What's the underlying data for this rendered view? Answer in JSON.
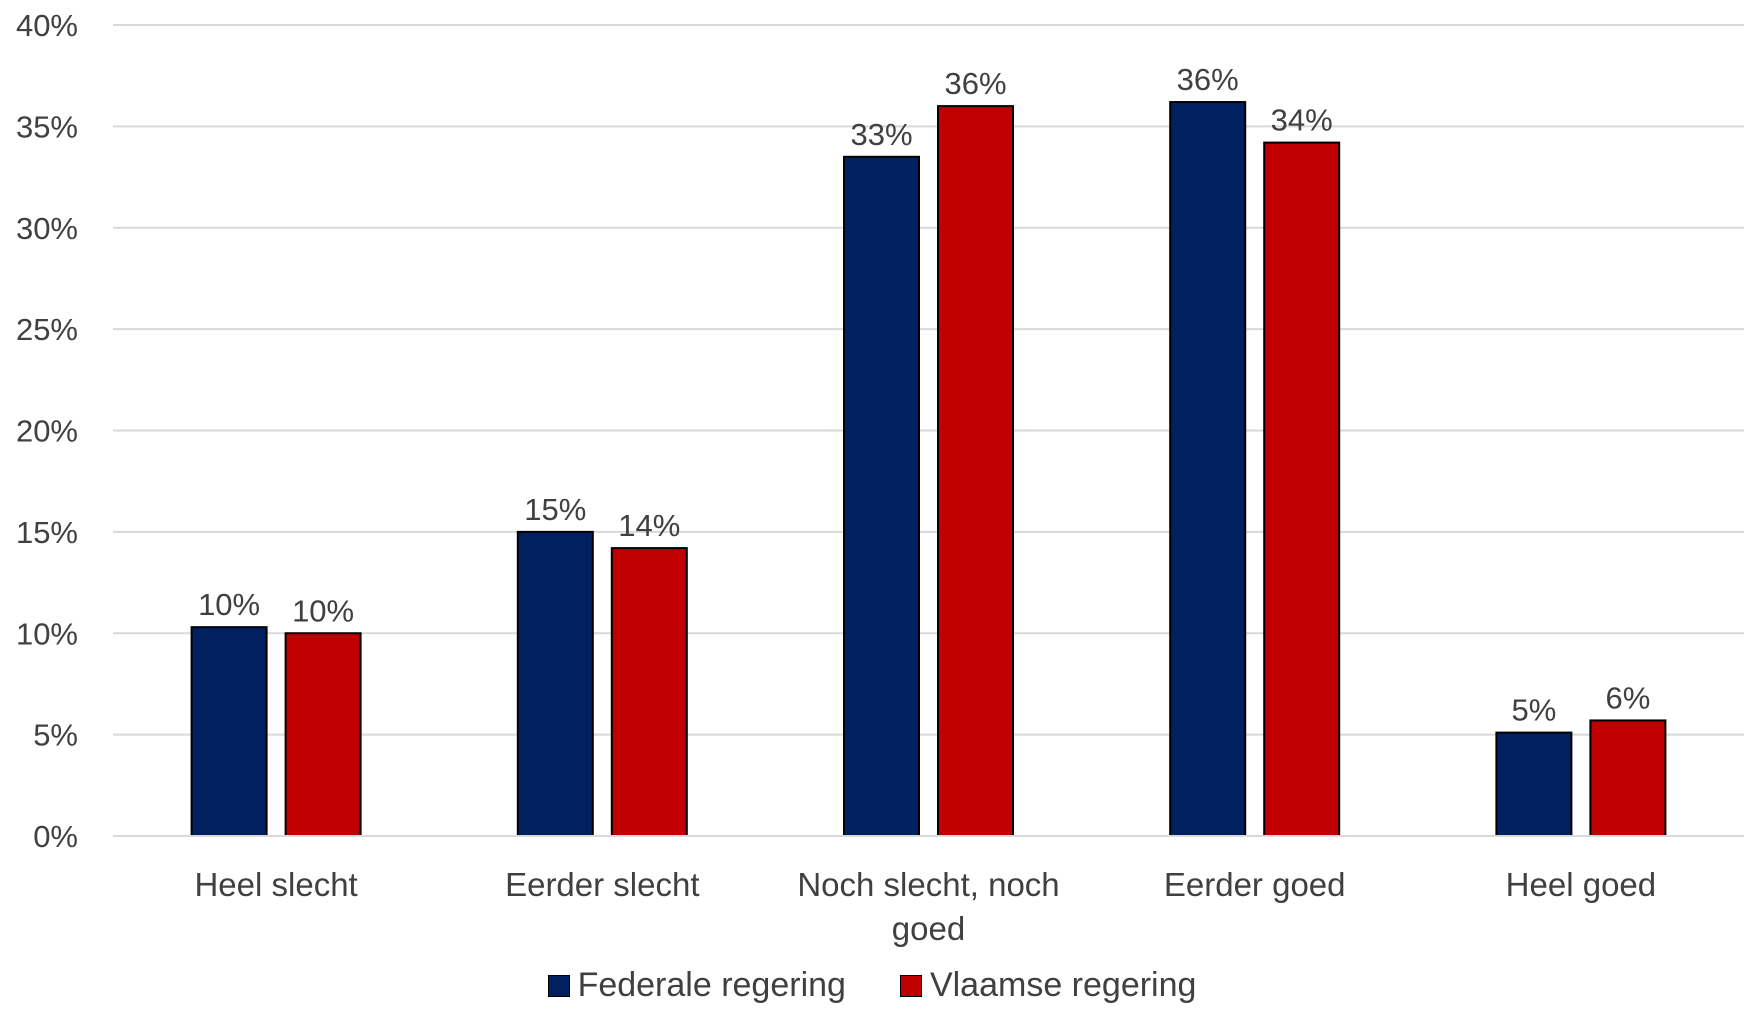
{
  "chart_data": {
    "type": "bar",
    "title": "",
    "xlabel": "",
    "ylabel": "",
    "ylim": [
      0,
      40
    ],
    "yticks": [
      {
        "value": 0,
        "label": "0%"
      },
      {
        "value": 5,
        "label": "5%"
      },
      {
        "value": 10,
        "label": "10%"
      },
      {
        "value": 15,
        "label": "15%"
      },
      {
        "value": 20,
        "label": "20%"
      },
      {
        "value": 25,
        "label": "25%"
      },
      {
        "value": 30,
        "label": "30%"
      },
      {
        "value": 35,
        "label": "35%"
      },
      {
        "value": 40,
        "label": "40%"
      }
    ],
    "grid": true,
    "legend_position": "bottom",
    "categories": [
      [
        "Heel slecht"
      ],
      [
        "Eerder slecht"
      ],
      [
        "Noch slecht, noch",
        "goed"
      ],
      [
        "Eerder goed"
      ],
      [
        "Heel goed"
      ]
    ],
    "series": [
      {
        "name": "Federale regering",
        "color": "#002060",
        "values": [
          10.3,
          15.0,
          33.5,
          36.2,
          5.1
        ],
        "labels": [
          "10%",
          "15%",
          "33%",
          "36%",
          "5%"
        ]
      },
      {
        "name": "Vlaamse regering",
        "color": "#C00000",
        "values": [
          10.0,
          14.2,
          36.0,
          34.2,
          5.7
        ],
        "labels": [
          "10%",
          "14%",
          "36%",
          "34%",
          "6%"
        ]
      }
    ]
  }
}
